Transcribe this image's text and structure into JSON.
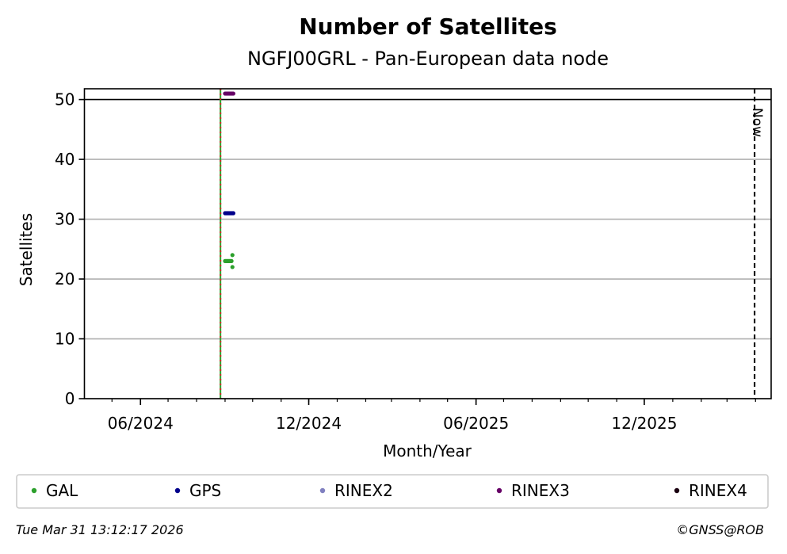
{
  "chart_data": {
    "type": "scatter",
    "title": "Number of Satellites",
    "subtitle": "NGFJ00GRL - Pan-European data node",
    "xlabel": "Month/Year",
    "ylabel": "Satellites",
    "xlim": [
      "2024-04-01",
      "2026-04-18"
    ],
    "ylim": [
      0,
      51.8
    ],
    "yticks": [
      0,
      10,
      20,
      30,
      40,
      50
    ],
    "xticks": [
      {
        "date": "2024-06-01",
        "label": "06/2024"
      },
      {
        "date": "2024-12-01",
        "label": "12/2024"
      },
      {
        "date": "2025-06-01",
        "label": "06/2025"
      },
      {
        "date": "2025-12-01",
        "label": "12/2025"
      }
    ],
    "grid": "horizontal",
    "reference_line_y": 50,
    "event_line_date": "2024-08-27",
    "now_line": {
      "date": "2026-03-31",
      "label": "Now"
    },
    "series": [
      {
        "name": "GAL",
        "color": "#2ca02c",
        "x": [
          "2024-09-01",
          "2024-09-02",
          "2024-09-03",
          "2024-09-04",
          "2024-09-05",
          "2024-09-06",
          "2024-09-07",
          "2024-09-08",
          "2024-09-09",
          "2024-09-09"
        ],
        "y": [
          23,
          23,
          23,
          23,
          23,
          23,
          23,
          23,
          24,
          22
        ]
      },
      {
        "name": "GPS",
        "color": "#00008b",
        "x": [
          "2024-09-01",
          "2024-09-02",
          "2024-09-03",
          "2024-09-04",
          "2024-09-05",
          "2024-09-06",
          "2024-09-07",
          "2024-09-08",
          "2024-09-09",
          "2024-09-10"
        ],
        "y": [
          31,
          31,
          31,
          31,
          31,
          31,
          31,
          31,
          31,
          31
        ]
      },
      {
        "name": "RINEX2",
        "color": "#8080c0",
        "x": [],
        "y": []
      },
      {
        "name": "RINEX3",
        "color": "#660066",
        "x": [
          "2024-09-01",
          "2024-09-02",
          "2024-09-03",
          "2024-09-04",
          "2024-09-05",
          "2024-09-06",
          "2024-09-07",
          "2024-09-08",
          "2024-09-09",
          "2024-09-10"
        ],
        "y": [
          51,
          51,
          51,
          51,
          51,
          51,
          51,
          51,
          51,
          51
        ]
      },
      {
        "name": "RINEX4",
        "color": "#1a0010",
        "x": [],
        "y": []
      }
    ]
  },
  "footer": {
    "timestamp": "Tue Mar 31 13:12:17 2026",
    "credit": "©GNSS@ROB"
  }
}
